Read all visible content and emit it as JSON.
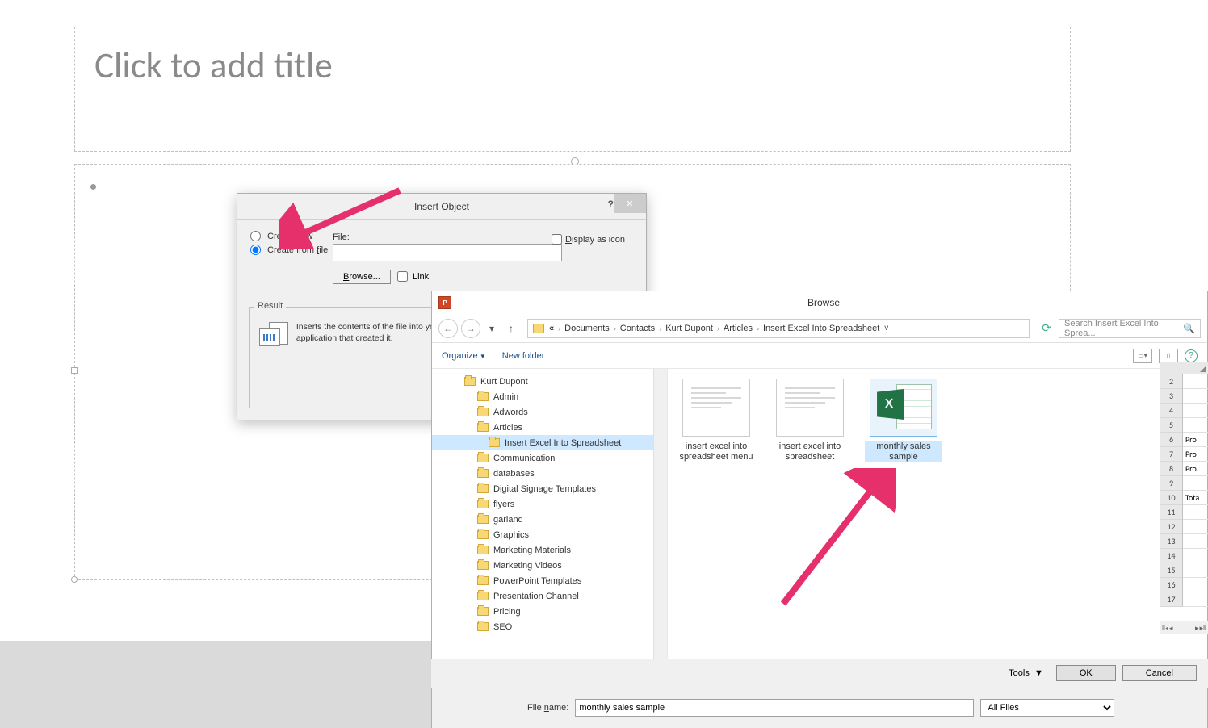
{
  "slide": {
    "title_placeholder": "Click to add title"
  },
  "insert_object": {
    "dialog_title": "Insert Object",
    "opt_create_new": "Create new",
    "opt_create_from_file": "Create from file",
    "selected_option": "file",
    "file_label": "File:",
    "file_value": "",
    "browse_btn": "Browse...",
    "link_label": "Link",
    "display_icon_label": "Display as icon",
    "result_label": "Result",
    "result_text": "Inserts the contents of the file into your presentation so that you can activate it using the application that created it."
  },
  "browse": {
    "title": "Browse",
    "breadcrumb": [
      "Documents",
      "Contacts",
      "Kurt Dupont",
      "Articles",
      "Insert Excel Into Spreadsheet"
    ],
    "search_placeholder": "Search Insert Excel Into Sprea...",
    "organize": "Organize",
    "new_folder": "New folder",
    "tree": [
      {
        "label": "Kurt Dupont",
        "depth": 1,
        "selected": false
      },
      {
        "label": "Admin",
        "depth": 2,
        "selected": false
      },
      {
        "label": "Adwords",
        "depth": 2,
        "selected": false
      },
      {
        "label": "Articles",
        "depth": 2,
        "selected": false
      },
      {
        "label": "Insert Excel Into Spreadsheet",
        "depth": 3,
        "selected": true
      },
      {
        "label": "Communication",
        "depth": 2,
        "selected": false
      },
      {
        "label": "databases",
        "depth": 2,
        "selected": false
      },
      {
        "label": "Digital Signage Templates",
        "depth": 2,
        "selected": false
      },
      {
        "label": "flyers",
        "depth": 2,
        "selected": false
      },
      {
        "label": "garland",
        "depth": 2,
        "selected": false
      },
      {
        "label": "Graphics",
        "depth": 2,
        "selected": false
      },
      {
        "label": "Marketing Materials",
        "depth": 2,
        "selected": false
      },
      {
        "label": "Marketing Videos",
        "depth": 2,
        "selected": false
      },
      {
        "label": "PowerPoint Templates",
        "depth": 2,
        "selected": false
      },
      {
        "label": "Presentation Channel",
        "depth": 2,
        "selected": false
      },
      {
        "label": "Pricing",
        "depth": 2,
        "selected": false
      },
      {
        "label": "SEO",
        "depth": 2,
        "selected": false
      }
    ],
    "files": [
      {
        "label": "insert excel into spreadsheet menu",
        "type": "image"
      },
      {
        "label": "insert excel into spreadsheet",
        "type": "image"
      },
      {
        "label": "monthly sales sample",
        "type": "excel",
        "selected": true
      }
    ],
    "filename_label": "File name:",
    "filename_value": "monthly sales sample",
    "filetype": "All Files",
    "tools_label": "Tools",
    "ok_btn": "OK",
    "cancel_btn": "Cancel"
  },
  "excel_preview": {
    "rows": [
      {
        "n": 2,
        "v": ""
      },
      {
        "n": 3,
        "v": ""
      },
      {
        "n": 4,
        "v": ""
      },
      {
        "n": 5,
        "v": ""
      },
      {
        "n": 6,
        "v": "Pro"
      },
      {
        "n": 7,
        "v": "Pro"
      },
      {
        "n": 8,
        "v": "Pro"
      },
      {
        "n": 9,
        "v": ""
      },
      {
        "n": 10,
        "v": "Tota"
      },
      {
        "n": 11,
        "v": ""
      },
      {
        "n": 12,
        "v": ""
      },
      {
        "n": 13,
        "v": ""
      },
      {
        "n": 14,
        "v": ""
      },
      {
        "n": 15,
        "v": ""
      },
      {
        "n": 16,
        "v": ""
      },
      {
        "n": 17,
        "v": ""
      }
    ]
  },
  "colors": {
    "arrow": "#e6306c",
    "folder": "#f8d775",
    "excel_green": "#217346",
    "selection_blue": "#cde8ff"
  }
}
